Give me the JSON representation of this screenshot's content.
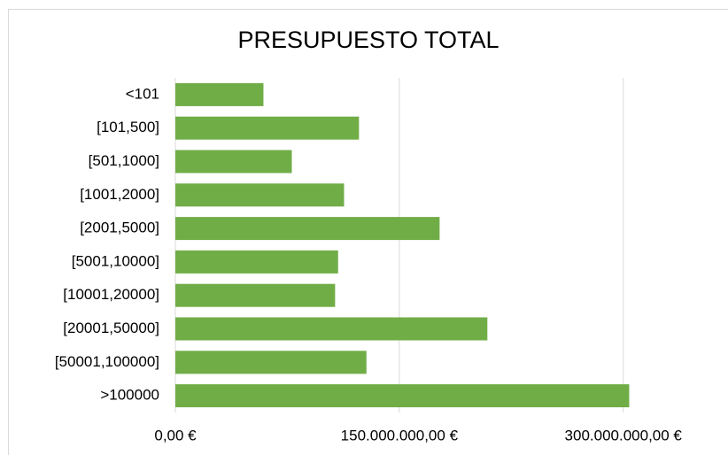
{
  "chart_data": {
    "type": "bar",
    "orientation": "horizontal",
    "title": "PRESUPUESTO TOTAL",
    "categories": [
      "<101",
      "[101,500]",
      "[501,1000]",
      "[1001,2000]",
      "[2001,5000]",
      "[5001,10000]",
      "[10001,20000]",
      "[20001,50000]",
      "[50001,100000]",
      ">100000"
    ],
    "values": [
      59000000,
      123000000,
      78000000,
      113000000,
      177000000,
      109000000,
      107000000,
      209000000,
      128000000,
      304000000
    ],
    "color": "#70ad47",
    "xlim": [
      0,
      350000000
    ],
    "xticks": [
      {
        "value": 0,
        "label": "0,00 €"
      },
      {
        "value": 150000000,
        "label": "150.000.000,00 €"
      },
      {
        "value": 300000000,
        "label": "300.000.000,00 €"
      }
    ],
    "grid": true
  }
}
